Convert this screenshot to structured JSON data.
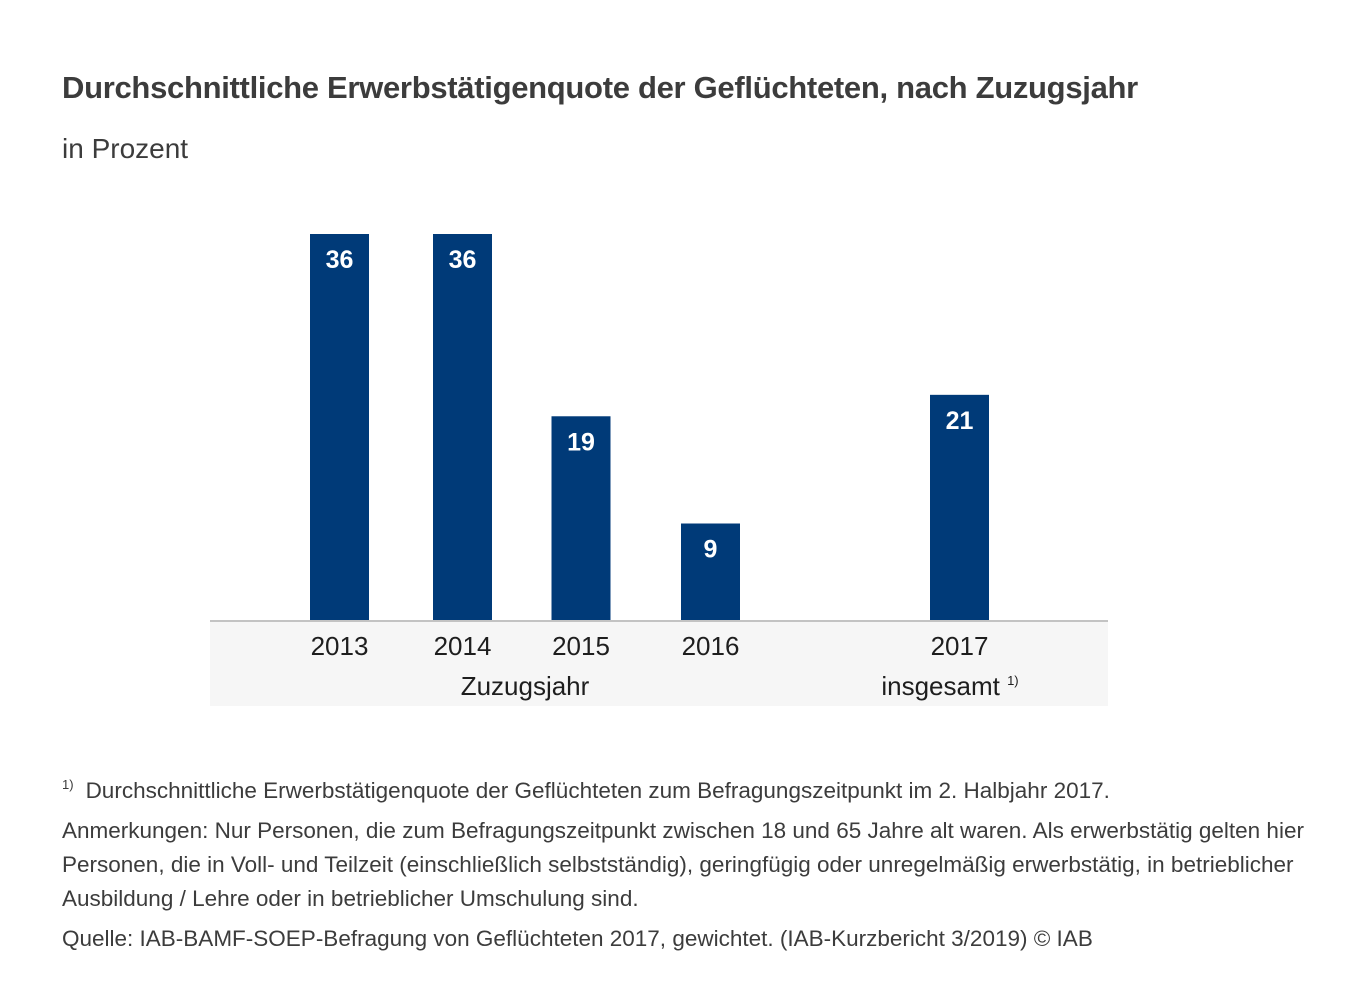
{
  "title": "Durchschnittliche Erwerbstätigenquote der Geflüchteten, nach Zuzugsjahr",
  "subtitle": "in Prozent",
  "colors": {
    "bar": "#003a78",
    "bar_label": "#ffffff",
    "axis_band": "#f6f6f6",
    "axis_line": "#c3c3c3"
  },
  "chart_data": {
    "type": "bar",
    "title": "Durchschnittliche Erwerbstätigenquote der Geflüchteten, nach Zuzugsjahr",
    "subtitle": "in Prozent",
    "xlabel": "",
    "ylabel": "in Prozent",
    "ylim": [
      0,
      36
    ],
    "grid": false,
    "categories": [
      "2013",
      "2014",
      "2015",
      "2016",
      "2017"
    ],
    "values": [
      36,
      36,
      19,
      9,
      21
    ],
    "data_labels": [
      "36",
      "36",
      "19",
      "9",
      "21"
    ],
    "groups": [
      {
        "label": "Zuzugsjahr",
        "categories": [
          "2013",
          "2014",
          "2015",
          "2016"
        ]
      },
      {
        "label": "insgesamt",
        "superscript": "1)",
        "categories": [
          "2017"
        ]
      }
    ]
  },
  "footnotes": {
    "note1_marker": "1)",
    "note1_text": "Durchschnittliche Erwerbstätigenquote der Geflüchteten zum Befragungszeitpunkt im 2. Halbjahr 2017.",
    "remarks": "Anmerkungen: Nur Personen, die zum Befragungszeitpunkt zwischen 18 und 65 Jahre alt waren. Als erwerbs­tätig gelten hier Personen, die in Voll- und Teilzeit (einschließlich selbstständig), geringfügig oder unregelmäßig erwerbstätig, in betrieblicher Ausbildung / Lehre oder in betrieblicher Umschulung sind.",
    "source": "Quelle: IAB-BAMF-SOEP-Befragung von Geflüchteten 2017, gewichtet. (IAB-Kurzbericht 3/2019)  © IAB"
  }
}
